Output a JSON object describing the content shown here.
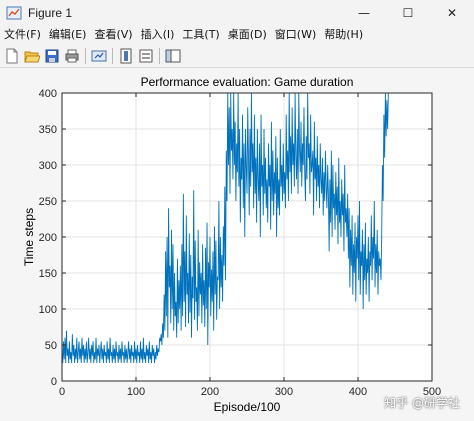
{
  "window": {
    "title": "Figure 1",
    "controls": {
      "minimize": "—",
      "maximize": "☐",
      "close": "✕"
    }
  },
  "menu": [
    "文件(F)",
    "编辑(E)",
    "查看(V)",
    "插入(I)",
    "工具(T)",
    "桌面(D)",
    "窗口(W)",
    "帮助(H)"
  ],
  "toolbar": {
    "icons": [
      "new-figure-icon",
      "open-file-icon",
      "save-icon",
      "print-icon",
      "link-plot-icon",
      "colorbar-icon",
      "legend-icon",
      "dock-panel-icon"
    ]
  },
  "watermark": "知乎 @研学社",
  "chart_data": {
    "type": "line",
    "title": "Performance evaluation: Game duration",
    "xlabel": "Episode/100",
    "ylabel": "Time steps",
    "xlim": [
      0,
      500
    ],
    "ylim": [
      0,
      400
    ],
    "xticks": [
      0,
      100,
      200,
      300,
      400,
      500
    ],
    "yticks": [
      0,
      50,
      100,
      150,
      200,
      250,
      300,
      350,
      400
    ],
    "grid": true,
    "line_color": "#0072bd",
    "series": [
      {
        "x_start": 0,
        "x_step": 1,
        "values": [
          40,
          25,
          55,
          30,
          60,
          25,
          70,
          35,
          45,
          25,
          55,
          30,
          40,
          25,
          65,
          35,
          50,
          25,
          45,
          30,
          60,
          25,
          40,
          55,
          30,
          45,
          25,
          60,
          35,
          50,
          25,
          45,
          30,
          55,
          25,
          40,
          60,
          30,
          45,
          25,
          50,
          35,
          55,
          25,
          40,
          30,
          60,
          25,
          45,
          35,
          50,
          25,
          40,
          55,
          30,
          45,
          25,
          50,
          35,
          40,
          25,
          55,
          30,
          45,
          25,
          60,
          35,
          40,
          25,
          50,
          30,
          45,
          25,
          55,
          35,
          40,
          25,
          50,
          30,
          45,
          25,
          55,
          35,
          40,
          25,
          50,
          30,
          45,
          25,
          40,
          55,
          30,
          45,
          25,
          50,
          35,
          40,
          25,
          55,
          30,
          45,
          25,
          50,
          35,
          40,
          25,
          55,
          30,
          45,
          25,
          60,
          30,
          40,
          25,
          50,
          35,
          45,
          25,
          55,
          30,
          40,
          25,
          50,
          35,
          45,
          25,
          40,
          30,
          50,
          35,
          45,
          40,
          60,
          55,
          65,
          50,
          80,
          60,
          120,
          70,
          180,
          90,
          200,
          60,
          240,
          130,
          160,
          80,
          210,
          100,
          190,
          70,
          150,
          90,
          110,
          60,
          170,
          80,
          140,
          100,
          160,
          70,
          190,
          90,
          260,
          110,
          180,
          75,
          230,
          120,
          150,
          80,
          205,
          95,
          175,
          60,
          145,
          115,
          265,
          85,
          195,
          110,
          130,
          70,
          210,
          90,
          165,
          120,
          150,
          80,
          190,
          105,
          140,
          75,
          185,
          100,
          220,
          50,
          165,
          130,
          200,
          90,
          155,
          110,
          180,
          70,
          215,
          120,
          195,
          85,
          145,
          140,
          250,
          100,
          200,
          130,
          175,
          110,
          215,
          160,
          270,
          140,
          320,
          250,
          400,
          300,
          380,
          260,
          400,
          320,
          350,
          280,
          400,
          300,
          360,
          250,
          330,
          290,
          400,
          270,
          350,
          220,
          310,
          280,
          370,
          240,
          330,
          200,
          350,
          300,
          260,
          380,
          310,
          230,
          350,
          270,
          400,
          290,
          330,
          240,
          370,
          260,
          310,
          220,
          350,
          280,
          250,
          330,
          200,
          370,
          270,
          300,
          230,
          350,
          260,
          310,
          240,
          280,
          220,
          330,
          270,
          300,
          210,
          360,
          250,
          320,
          230,
          290,
          260,
          340,
          200,
          310,
          240,
          280,
          230,
          350,
          270,
          300,
          250,
          330,
          260,
          290,
          240,
          370,
          280,
          320,
          250,
          400,
          290,
          340,
          260,
          380,
          300,
          330,
          270,
          400,
          310,
          280,
          350,
          260,
          400,
          320,
          290,
          360,
          270,
          330,
          300,
          380,
          290,
          250,
          340,
          280,
          400,
          310,
          330,
          260,
          370,
          290,
          300,
          320,
          230,
          360,
          280,
          310,
          250,
          340,
          270,
          300,
          240,
          330,
          280,
          260,
          310,
          230,
          290,
          250,
          320,
          270,
          240,
          300,
          260,
          180,
          280,
          220,
          320,
          200,
          300,
          240,
          260,
          210,
          290,
          230,
          270,
          190,
          310,
          220,
          250,
          200,
          280,
          230,
          260,
          180,
          300,
          220,
          240,
          200,
          260,
          170,
          240,
          130,
          210,
          160,
          230,
          120,
          190,
          150,
          220,
          110,
          200,
          170,
          230,
          140,
          250,
          120,
          180,
          160,
          210,
          100,
          190,
          140,
          220,
          120,
          170,
          150,
          200,
          110,
          180,
          160,
          230,
          140,
          200,
          170,
          250,
          130,
          190,
          150,
          210,
          120,
          180,
          160,
          170,
          140,
          200,
          300,
          250,
          370,
          310,
          400,
          340,
          390,
          350,
          400
        ]
      }
    ]
  }
}
